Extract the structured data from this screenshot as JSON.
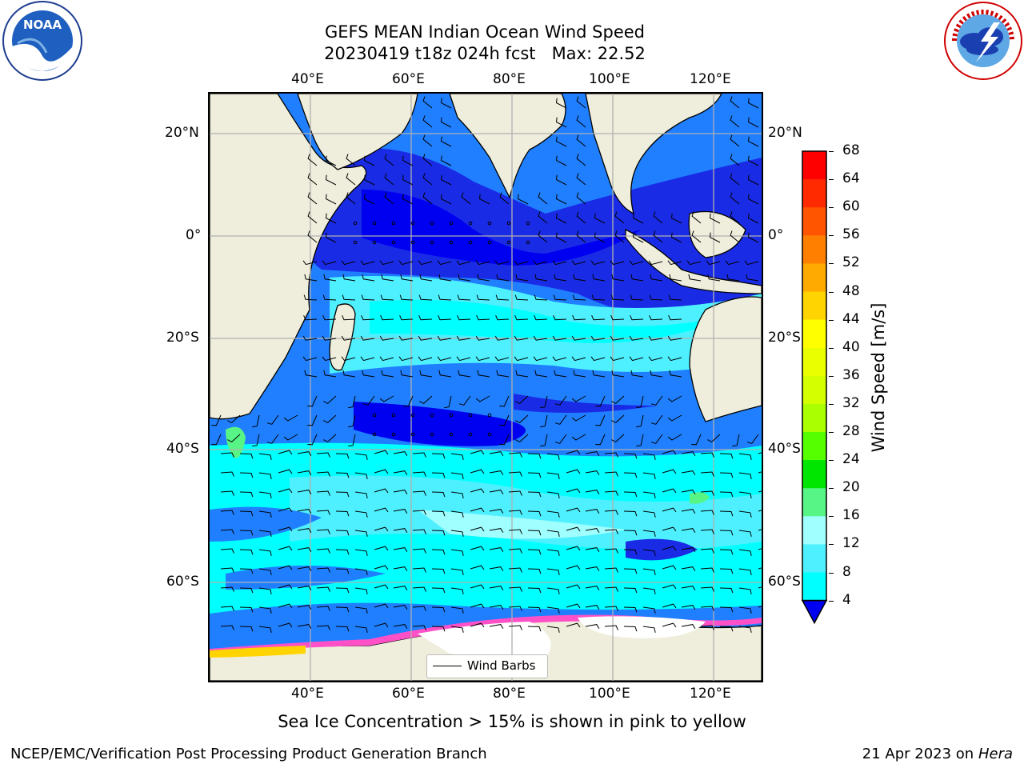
{
  "title": {
    "line1": "GEFS MEAN Indian Ocean Wind Speed",
    "line2": "20230419 t18z 024h fcst   Max: 22.52"
  },
  "logos": {
    "left": "noaa-logo",
    "right": "nws-logo",
    "left_text": "NOAA",
    "right_text": "NATIONAL WEATHER SERVICE"
  },
  "map": {
    "lon_labels": [
      "40°E",
      "60°E",
      "80°E",
      "100°E",
      "120°E"
    ],
    "lat_labels": [
      "20°N",
      "0°",
      "20°S",
      "40°S",
      "60°S"
    ],
    "land_color": "#efeedc",
    "grid_color": "#b0b0b0"
  },
  "colorbar": {
    "label": "Wind Speed [m/s]",
    "ticks": [
      "68",
      "64",
      "60",
      "56",
      "52",
      "48",
      "44",
      "40",
      "36",
      "32",
      "28",
      "24",
      "20",
      "16",
      "12",
      "8",
      "4"
    ],
    "colors": [
      "#ff0000",
      "#ff2a00",
      "#ff5500",
      "#ff8000",
      "#ffaa00",
      "#ffd400",
      "#ffff00",
      "#eaff00",
      "#d4ff00",
      "#aaff00",
      "#55ff00",
      "#00e600",
      "#57f585",
      "#a0ffff",
      "#4ef0ff",
      "#00ffff",
      "#0a8cff",
      "#0000f0"
    ]
  },
  "legend": {
    "label": "Wind Barbs"
  },
  "caption": "Sea Ice Concentration > 15% is shown in pink to yellow",
  "footer": {
    "left": "NCEP/EMC/Verification Post Processing Product Generation Branch",
    "right_prefix": "21 Apr 2023 on",
    "right_italic": "Hera"
  }
}
